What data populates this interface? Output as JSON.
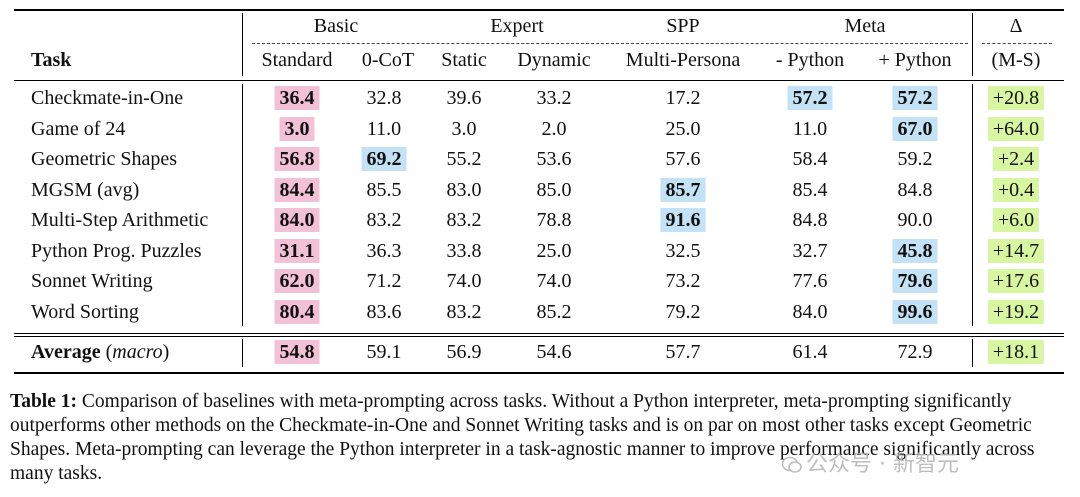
{
  "header": {
    "groups": {
      "basic": "Basic",
      "expert": "Expert",
      "spp": "SPP",
      "meta": "Meta",
      "delta": "Δ"
    },
    "columns": [
      "Task",
      "Standard",
      "0-CoT",
      "Static",
      "Dynamic",
      "Multi-Persona",
      "- Python",
      "+ Python",
      "(M-S)"
    ]
  },
  "rows": [
    {
      "task": "Checkmate-in-One",
      "values": [
        "36.4",
        "32.8",
        "39.6",
        "33.2",
        "17.2",
        "57.2",
        "57.2",
        "+20.8"
      ]
    },
    {
      "task": "Game of 24",
      "values": [
        "3.0",
        "11.0",
        "3.0",
        "2.0",
        "25.0",
        "11.0",
        "67.0",
        "+64.0"
      ]
    },
    {
      "task": "Geometric Shapes",
      "values": [
        "56.8",
        "69.2",
        "55.2",
        "53.6",
        "57.6",
        "58.4",
        "59.2",
        "+2.4"
      ]
    },
    {
      "task": "MGSM (avg)",
      "values": [
        "84.4",
        "85.5",
        "83.0",
        "85.0",
        "85.7",
        "85.4",
        "84.8",
        "+0.4"
      ]
    },
    {
      "task": "Multi-Step Arithmetic",
      "values": [
        "84.0",
        "83.2",
        "83.2",
        "78.8",
        "91.6",
        "84.8",
        "90.0",
        "+6.0"
      ]
    },
    {
      "task": "Python Prog. Puzzles",
      "values": [
        "31.1",
        "36.3",
        "33.8",
        "25.0",
        "32.5",
        "32.7",
        "45.8",
        "+14.7"
      ]
    },
    {
      "task": "Sonnet Writing",
      "values": [
        "62.0",
        "71.2",
        "74.0",
        "74.0",
        "73.2",
        "77.6",
        "79.6",
        "+17.6"
      ]
    },
    {
      "task": "Word Sorting",
      "values": [
        "80.4",
        "83.6",
        "83.2",
        "85.2",
        "79.2",
        "84.0",
        "99.6",
        "+19.2"
      ]
    }
  ],
  "average": {
    "label_bold": "Average",
    "label_italic": "macro",
    "values": [
      "54.8",
      "59.1",
      "56.9",
      "54.6",
      "57.7",
      "61.4",
      "72.9",
      "+18.1"
    ]
  },
  "caption": {
    "label": "Table 1:",
    "text": "Comparison of baselines with meta-prompting across tasks. Without a Python interpreter, meta-prompting significantly outperforms other methods on the Checkmate-in-One and Sonnet Writing tasks and is on par on most other tasks except Geometric Shapes. Meta-prompting can leverage the Python interpreter in a task-agnostic manner to improve performance significantly across many tasks."
  },
  "watermark": "公众号 · 新智元",
  "colors": {
    "standard_highlight": "#f3c1d6",
    "best_highlight": "#c3e2f6",
    "delta_highlight": "#d8f5a2"
  }
}
